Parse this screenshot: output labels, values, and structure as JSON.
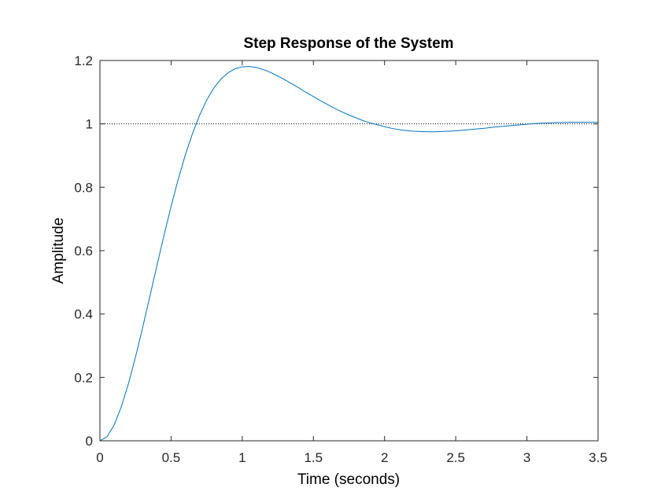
{
  "chart_data": {
    "type": "line",
    "title": "Step Response of the System",
    "xlabel": "Time (seconds)",
    "ylabel": "Amplitude",
    "xlim": [
      0,
      3.5
    ],
    "ylim": [
      0,
      1.2
    ],
    "xticks": [
      0,
      0.5,
      1,
      1.5,
      2,
      2.5,
      3,
      3.5
    ],
    "xtick_labels": [
      "0",
      "0.5",
      "1",
      "1.5",
      "2",
      "2.5",
      "3",
      "3.5"
    ],
    "yticks": [
      0,
      0.2,
      0.4,
      0.6,
      0.8,
      1.0,
      1.2
    ],
    "ytick_labels": [
      "0",
      "0.2",
      "0.4",
      "0.6",
      "0.8",
      "1",
      "1.2"
    ],
    "grid": false,
    "reference_line": {
      "y": 1.0,
      "style": "dotted",
      "color": "#000000"
    },
    "series": [
      {
        "color": "#0072BD",
        "x": [
          0,
          0.05,
          0.1,
          0.15,
          0.2,
          0.25,
          0.3,
          0.35,
          0.4,
          0.45,
          0.5,
          0.55,
          0.6,
          0.65,
          0.7,
          0.75,
          0.8,
          0.85,
          0.9,
          0.95,
          1.0,
          1.05,
          1.1,
          1.15,
          1.2,
          1.25,
          1.3,
          1.35,
          1.4,
          1.45,
          1.5,
          1.55,
          1.6,
          1.65,
          1.7,
          1.75,
          1.8,
          1.85,
          1.9,
          1.95,
          2.0,
          2.05,
          2.1,
          2.15,
          2.2,
          2.25,
          2.3,
          2.35,
          2.4,
          2.45,
          2.5,
          2.55,
          2.6,
          2.65,
          2.7,
          2.75,
          2.8,
          2.85,
          2.9,
          2.95,
          3.0,
          3.05,
          3.1,
          3.15,
          3.2,
          3.25,
          3.3,
          3.35,
          3.4,
          3.45,
          3.5
        ],
        "y": [
          0,
          0.013,
          0.05,
          0.107,
          0.18,
          0.264,
          0.357,
          0.454,
          0.552,
          0.648,
          0.74,
          0.825,
          0.902,
          0.969,
          1.027,
          1.075,
          1.113,
          1.141,
          1.161,
          1.174,
          1.18,
          1.181,
          1.178,
          1.171,
          1.162,
          1.151,
          1.139,
          1.126,
          1.113,
          1.099,
          1.086,
          1.073,
          1.061,
          1.049,
          1.038,
          1.028,
          1.019,
          1.01,
          1.003,
          0.997,
          0.991,
          0.986,
          0.982,
          0.979,
          0.977,
          0.976,
          0.975,
          0.975,
          0.976,
          0.977,
          0.978,
          0.98,
          0.982,
          0.984,
          0.986,
          0.989,
          0.991,
          0.993,
          0.995,
          0.997,
          0.999,
          1.001,
          1.002,
          1.003,
          1.004,
          1.004,
          1.005,
          1.005,
          1.005,
          1.005,
          1.005
        ]
      }
    ]
  }
}
